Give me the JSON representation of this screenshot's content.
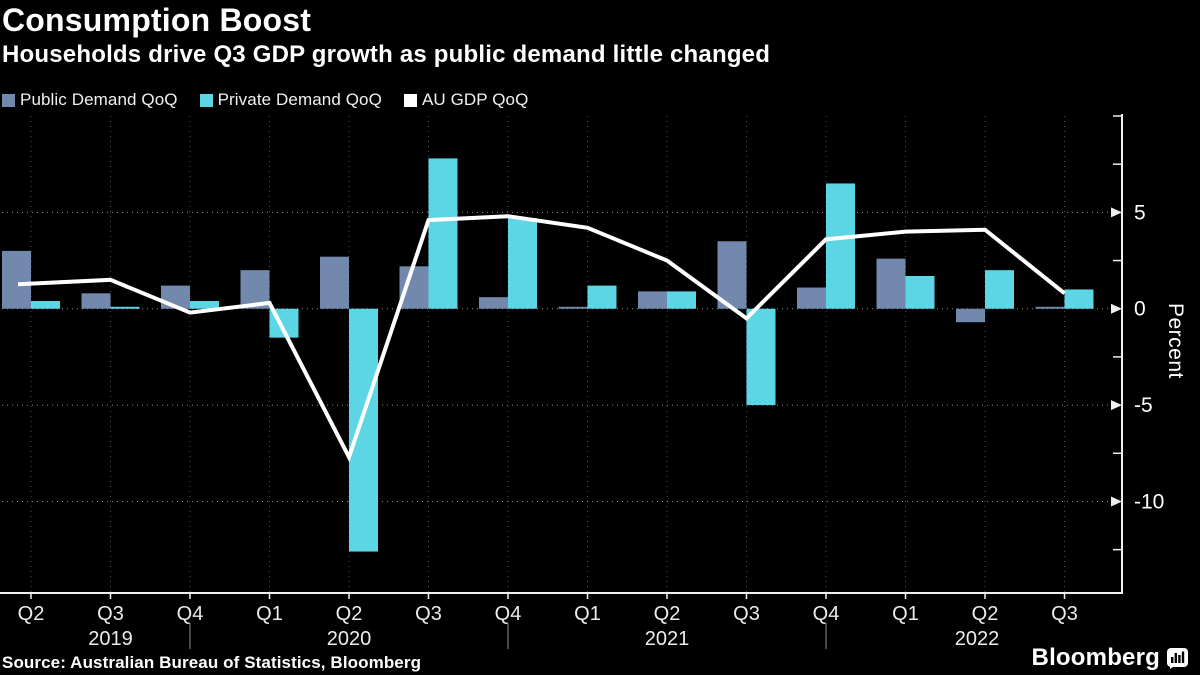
{
  "header": {
    "title": "Consumption Boost",
    "subtitle": "Households drive Q3 GDP growth as public demand little changed"
  },
  "legend": [
    {
      "label": "Public Demand QoQ",
      "color": "#7288ad"
    },
    {
      "label": "Private Demand QoQ",
      "color": "#5cd6e5"
    },
    {
      "label": "AU GDP QoQ",
      "color": "#ffffff"
    }
  ],
  "chart_data": {
    "type": "bar+line",
    "title": "Consumption Boost",
    "subtitle": "Households drive Q3 GDP growth as public demand little changed",
    "x_categories": [
      "Q2 2019",
      "Q3 2019",
      "Q4 2019",
      "Q1 2020",
      "Q2 2020",
      "Q3 2020",
      "Q4 2020",
      "Q1 2021",
      "Q2 2021",
      "Q3 2021",
      "Q4 2021",
      "Q1 2022",
      "Q2 2022",
      "Q3 2022"
    ],
    "x_tick_labels": [
      "Q2",
      "Q3",
      "Q4",
      "Q1",
      "Q2",
      "Q3",
      "Q4",
      "Q1",
      "Q2",
      "Q3",
      "Q4",
      "Q1",
      "Q2",
      "Q3"
    ],
    "year_labels": [
      {
        "text": "2019",
        "at_index": 1.0
      },
      {
        "text": "2020",
        "at_index": 4.0
      },
      {
        "text": "2021",
        "at_index": 8.0
      },
      {
        "text": "2022",
        "at_index": 11.9
      }
    ],
    "year_separators_at_index": [
      2,
      6,
      10
    ],
    "series": [
      {
        "name": "Public Demand QoQ",
        "type": "bar",
        "color": "#7288ad",
        "values": [
          3.0,
          0.8,
          1.2,
          2.0,
          2.7,
          2.2,
          0.6,
          0.1,
          0.9,
          3.5,
          1.1,
          2.6,
          -0.7,
          0.1
        ]
      },
      {
        "name": "Private Demand QoQ",
        "type": "bar",
        "color": "#5cd6e5",
        "values": [
          0.4,
          0.1,
          0.4,
          -1.5,
          -12.6,
          7.8,
          4.7,
          1.2,
          0.9,
          -5.0,
          6.5,
          1.7,
          2.0,
          1.0
        ]
      },
      {
        "name": "AU GDP QoQ",
        "type": "line",
        "color": "#ffffff",
        "values": [
          1.3,
          1.5,
          -0.2,
          0.3,
          -7.7,
          4.6,
          4.8,
          4.2,
          2.5,
          -0.5,
          3.6,
          4.0,
          4.1,
          0.8
        ]
      }
    ],
    "ylabel": "Percent",
    "y_major_ticks": [
      5,
      0,
      -5,
      -10
    ],
    "y_minor_ticks": [
      10,
      7.5,
      2.5,
      -2.5,
      -7.5,
      -12.5
    ],
    "ylim": [
      -14.75,
      10
    ],
    "grid": {
      "horizontal": "dotted at labeled ticks",
      "vertical": "dotted at each quarter"
    },
    "legend_position": "top-left",
    "colors": {
      "background": "#000000",
      "axis": "#f0f0f0",
      "grid_h": "#8f8f8f",
      "grid_v": "#505050"
    }
  },
  "footer": {
    "source": "Source: Australian Bureau of Statistics, Bloomberg",
    "brand": "Bloomberg"
  }
}
